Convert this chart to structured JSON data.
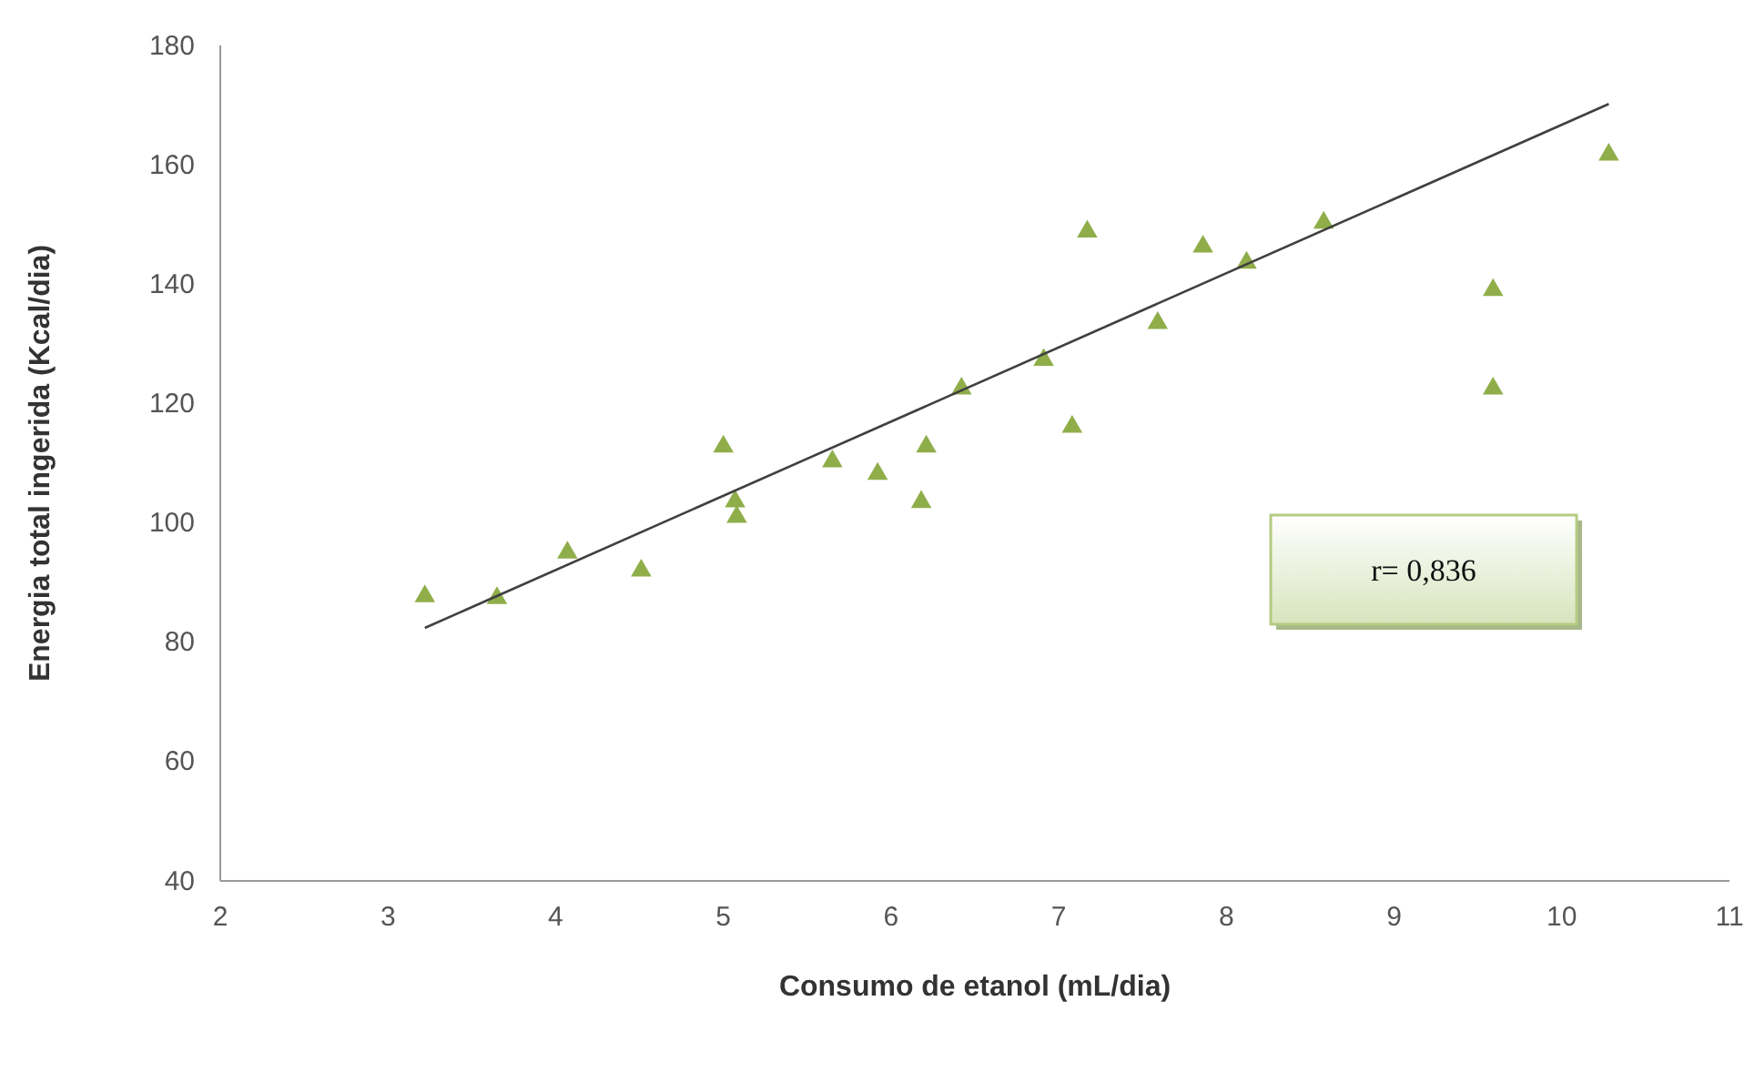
{
  "chart_data": {
    "type": "scatter",
    "xlabel": "Consumo de etanol (mL/dia)",
    "ylabel": "Energia total ingerida (Kcal/dia)",
    "xlim": [
      2,
      11
    ],
    "xticks": [
      2,
      3,
      4,
      5,
      6,
      7,
      8,
      9,
      10,
      11
    ],
    "ylim": [
      40,
      180
    ],
    "yticks": [
      40,
      60,
      80,
      100,
      120,
      140,
      160,
      180
    ],
    "grid": false,
    "marker": "triangle",
    "series": [
      {
        "color": "#8fae4a",
        "x": [
          3.22,
          3.65,
          4.07,
          4.51,
          5.0,
          5.07,
          5.08,
          5.65,
          5.92,
          6.21,
          6.18,
          6.42,
          6.91,
          7.08,
          7.17,
          7.59,
          7.86,
          8.12,
          8.58,
          9.59,
          9.59,
          10.28
        ],
        "values": [
          87.7,
          87.4,
          95.0,
          92.0,
          112.8,
          103.6,
          101.0,
          110.3,
          108.2,
          112.8,
          103.5,
          122.5,
          127.3,
          116.1,
          148.8,
          133.5,
          146.3,
          143.6,
          150.3,
          139.0,
          122.5,
          161.7
        ]
      },
      {
        "type": "line",
        "color": "#404040",
        "marker": "none",
        "line_style": "solid",
        "x": [
          3.22,
          10.28
        ],
        "values": [
          82.4,
          170.2
        ]
      }
    ],
    "annotations": [
      "r= 0,836"
    ]
  }
}
